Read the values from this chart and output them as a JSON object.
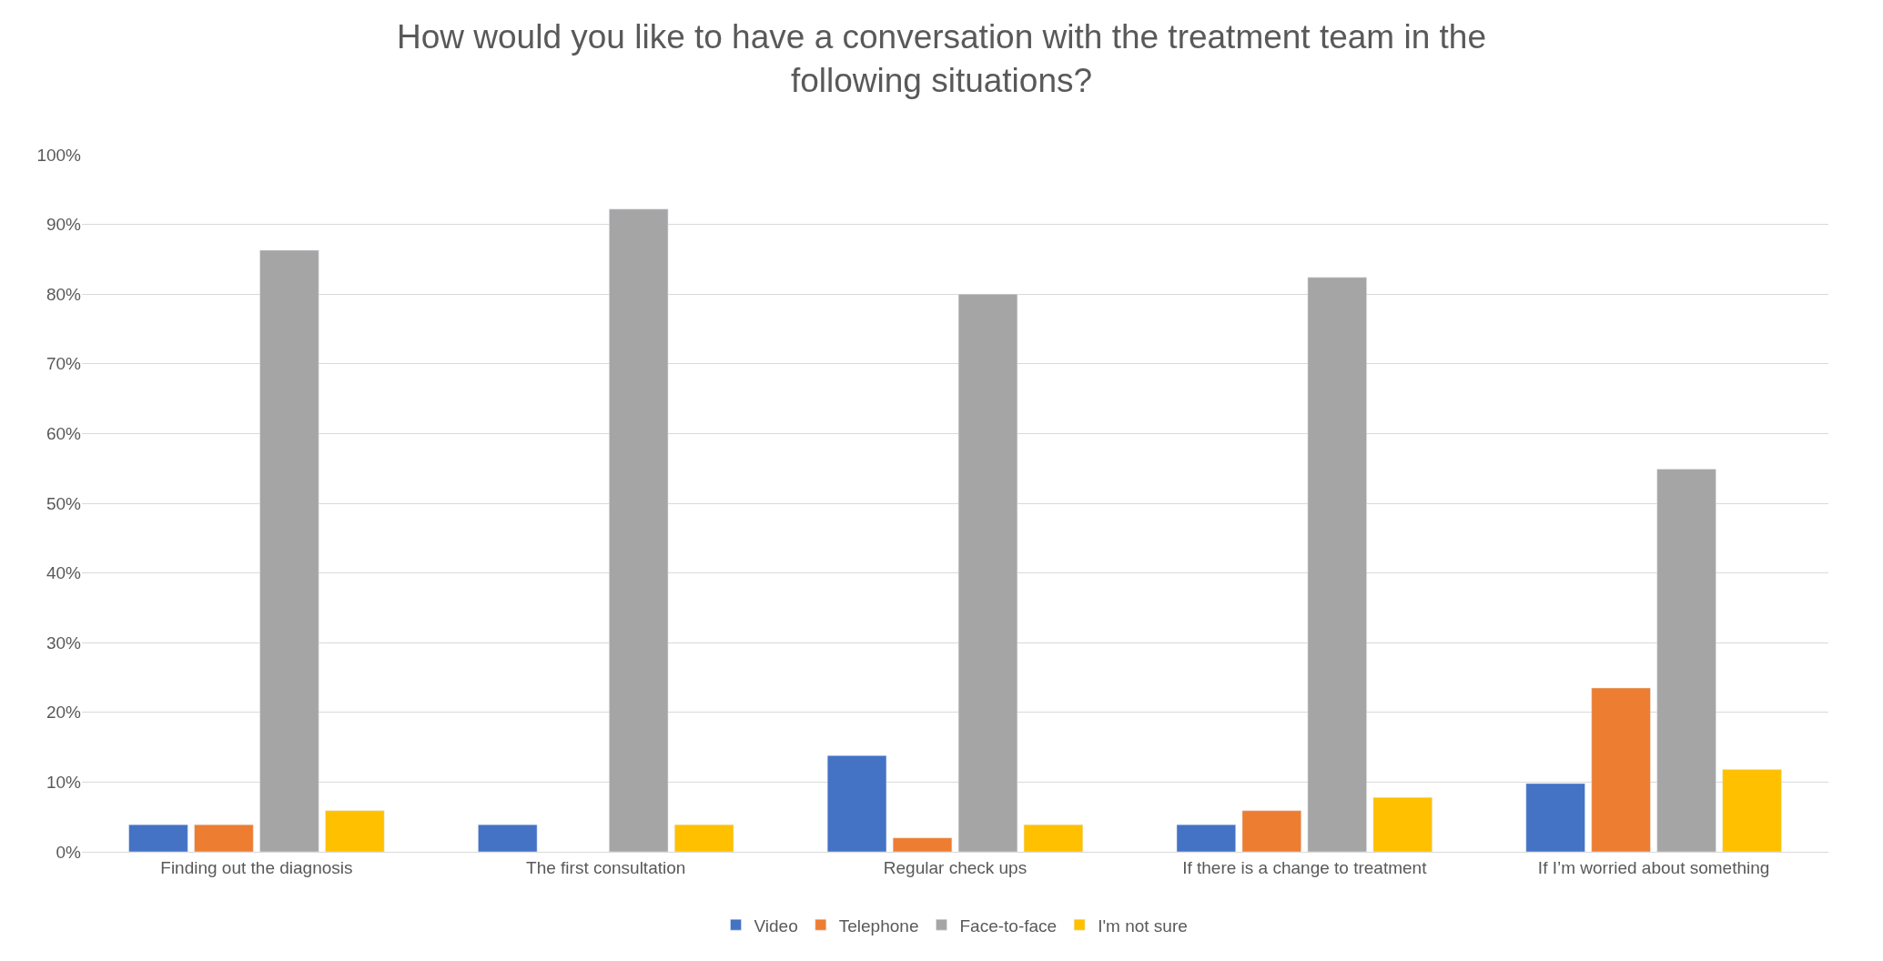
{
  "chart_data": {
    "type": "bar",
    "title": "How would you like to have a conversation with the treatment team in the following situations?",
    "categories": [
      "Finding out the diagnosis",
      "The first consultation",
      "Regular check ups",
      "If there is a change to treatment",
      "If I’m worried about something"
    ],
    "series": [
      {
        "name": "Video",
        "color": "#4472c4",
        "values": [
          3.9,
          3.9,
          13.8,
          3.9,
          9.8
        ]
      },
      {
        "name": "Telephone",
        "color": "#ed7d31",
        "values": [
          3.9,
          null,
          2,
          5.9,
          23.5
        ]
      },
      {
        "name": "Face-to-face",
        "color": "#a5a5a5",
        "values": [
          86.3,
          92.2,
          80,
          82.4,
          54.9
        ]
      },
      {
        "name": "I'm not sure",
        "color": "#ffc000",
        "values": [
          5.9,
          3.9,
          3.9,
          7.8,
          11.8
        ]
      }
    ],
    "ylim": [
      0,
      100
    ],
    "yticks": [
      {
        "value": 0,
        "label": "0%"
      },
      {
        "value": 10,
        "label": "10%"
      },
      {
        "value": 20,
        "label": "20%"
      },
      {
        "value": 30,
        "label": "30%"
      },
      {
        "value": 40,
        "label": "40%"
      },
      {
        "value": 50,
        "label": "50%"
      },
      {
        "value": 60,
        "label": "60%"
      },
      {
        "value": 70,
        "label": "70%"
      },
      {
        "value": 80,
        "label": "80%"
      },
      {
        "value": 90,
        "label": "90%"
      },
      {
        "value": 100,
        "label": "100%"
      }
    ],
    "grid": "y",
    "legend": "bottom"
  }
}
